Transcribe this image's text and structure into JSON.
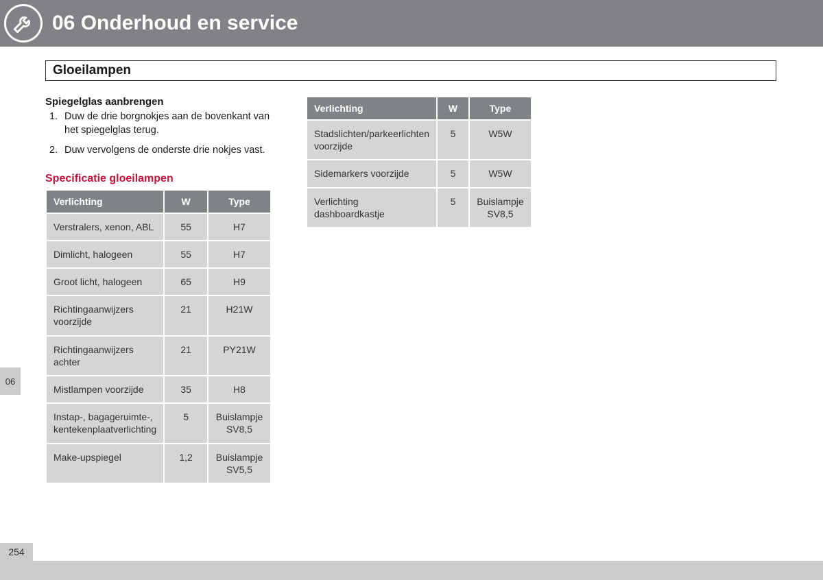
{
  "colors": {
    "header_bg": "#808285",
    "header_text": "#ffffff",
    "section_border": "#333333",
    "body_text": "#1a1a1a",
    "accent_red": "#c0143c",
    "th_bg": "#808386",
    "th_text": "#ffffff",
    "td_bg": "#d3d5d6",
    "td_text": "#333333",
    "tab_bg": "#c9cbcd"
  },
  "chapter": {
    "title": "06 Onderhoud en service"
  },
  "section": {
    "title": "Gloeilampen"
  },
  "mirror": {
    "heading": "Spiegelglas aanbrengen",
    "steps": [
      {
        "num": "1.",
        "text": "Duw de drie borgnokjes aan de bovenkant van het spiegelglas terug."
      },
      {
        "num": "2.",
        "text": "Duw vervolgens de onderste drie nokjes vast."
      }
    ]
  },
  "spec_heading": "Specificatie gloeilampen",
  "table_cols": {
    "c0": "Verlichting",
    "c1": "W",
    "c2": "Type"
  },
  "col_widths": [
    "52%",
    "20%",
    "28%"
  ],
  "table1": {
    "rows": [
      {
        "c0": "Verstralers, xenon, ABL",
        "c1": "55",
        "c2": "H7"
      },
      {
        "c0": "Dimlicht, halogeen",
        "c1": "55",
        "c2": "H7"
      },
      {
        "c0": "Groot licht, halogeen",
        "c1": "65",
        "c2": "H9"
      },
      {
        "c0": "Richtingaanwijzers voorzijde",
        "c1": "21",
        "c2": "H21W"
      },
      {
        "c0": "Richtingaanwijzers achter",
        "c1": "21",
        "c2": "PY21W"
      },
      {
        "c0": "Mistlampen voorzijde",
        "c1": "35",
        "c2": "H8"
      },
      {
        "c0": "Instap-, bagageruimte-, kentekenplaatverlichting",
        "c1": "5",
        "c2": "Buislampje SV8,5"
      },
      {
        "c0": "Make-upspiegel",
        "c1": "1,2",
        "c2": "Buislampje SV5,5"
      }
    ]
  },
  "table2": {
    "rows": [
      {
        "c0": "Stadslichten/parkeerlichten voorzijde",
        "c1": "5",
        "c2": "W5W"
      },
      {
        "c0": "Sidemarkers voorzijde",
        "c1": "5",
        "c2": "W5W"
      },
      {
        "c0": "Verlichting dashboardkastje",
        "c1": "5",
        "c2": "Buislampje SV8,5"
      }
    ]
  },
  "side_tab": "06",
  "page_number": "254"
}
